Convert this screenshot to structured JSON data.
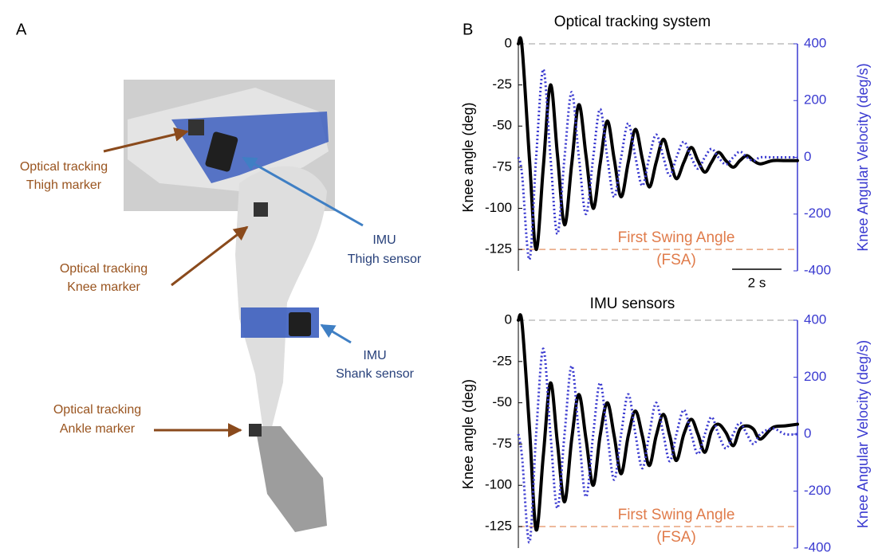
{
  "panel_labels": [
    "A",
    "B"
  ],
  "panel_a": {
    "labels": [
      {
        "lines": [
          "Optical tracking",
          "Thigh marker"
        ]
      },
      {
        "lines": [
          "Optical tracking",
          "Knee marker"
        ]
      },
      {
        "lines": [
          "IMU",
          "Thigh sensor"
        ]
      },
      {
        "lines": [
          "IMU",
          "Shank sensor"
        ]
      },
      {
        "lines": [
          "Optical tracking",
          "Ankle marker"
        ]
      }
    ]
  },
  "chart_data": [
    {
      "type": "line",
      "title": "Optical tracking system",
      "y_label": "Knee angle (deg)",
      "y2_label": "Knee Angular Velocity (deg/s)",
      "annotation": [
        "First Swing Angle",
        "(FSA)"
      ],
      "scale_bar": {
        "length": 2,
        "label": "2 s"
      },
      "xlim": [
        0,
        11.3
      ],
      "ylim": [
        -138,
        0
      ],
      "yticks": [
        0,
        -25,
        -50,
        -75,
        -100,
        -125
      ],
      "y2lim": [
        -400,
        400
      ],
      "y2ticks": [
        400,
        200,
        0,
        -200,
        -400
      ],
      "hlines": [
        {
          "value": 0,
          "color": "#bdbdbd"
        },
        {
          "value": -125,
          "color": "#e8a27c"
        }
      ],
      "x": [
        0,
        0.15,
        0.45,
        0.72,
        1.01,
        1.3,
        1.58,
        1.87,
        2.16,
        2.45,
        2.74,
        3.03,
        3.31,
        3.6,
        3.88,
        4.16,
        4.45,
        4.74,
        5.02,
        5.3,
        5.58,
        5.87,
        6.13,
        6.4,
        6.7,
        7.0,
        7.27,
        7.55,
        7.82,
        8.1,
        8.4,
        8.7,
        8.97,
        9.25,
        9.52,
        9.8,
        10.3,
        10.8,
        11.3
      ],
      "series": [
        {
          "color": "#000000",
          "style": "solid",
          "values": [
            0,
            -2,
            -70,
            -125,
            -75,
            -25,
            -67,
            -110,
            -73,
            -37,
            -68,
            -100,
            -73,
            -47,
            -70,
            -93,
            -72,
            -52,
            -70,
            -87,
            -72,
            -58,
            -70,
            -82,
            -72,
            -63,
            -71,
            -78,
            -72,
            -66,
            -71,
            -75,
            -71,
            -68,
            -71,
            -73,
            -71,
            -71,
            -71
          ]
        },
        {
          "color": "#3a3ad0",
          "style": "dotted",
          "axis": "y2",
          "values": [
            0,
            -60,
            -360,
            0,
            310,
            0,
            -270,
            0,
            230,
            0,
            -200,
            0,
            170,
            0,
            -140,
            0,
            120,
            0,
            -100,
            0,
            80,
            0,
            -65,
            0,
            55,
            0,
            -40,
            0,
            30,
            0,
            -25,
            0,
            20,
            0,
            -12,
            0,
            0,
            0,
            0
          ]
        }
      ]
    },
    {
      "type": "line",
      "title": "IMU sensors",
      "y_label": "Knee angle (deg)",
      "y2_label": "Knee Angular Velocity (deg/s)",
      "annotation": [
        "First Swing Angle",
        "(FSA)"
      ],
      "xlim": [
        0,
        11.3
      ],
      "ylim": [
        -138,
        0
      ],
      "yticks": [
        0,
        -25,
        -50,
        -75,
        -100,
        -125
      ],
      "y2lim": [
        -400,
        400
      ],
      "y2ticks": [
        400,
        200,
        0,
        -200,
        -400
      ],
      "hlines": [
        {
          "value": 0,
          "color": "#bdbdbd"
        },
        {
          "value": -125,
          "color": "#e8a27c"
        }
      ],
      "x": [
        0,
        0.15,
        0.45,
        0.72,
        1.01,
        1.3,
        1.58,
        1.87,
        2.16,
        2.45,
        2.74,
        3.03,
        3.31,
        3.6,
        3.88,
        4.16,
        4.45,
        4.74,
        5.02,
        5.3,
        5.58,
        5.87,
        6.13,
        6.4,
        6.7,
        7.0,
        7.27,
        7.55,
        7.82,
        8.1,
        8.4,
        8.7,
        8.97,
        9.25,
        9.52,
        9.8,
        10.3,
        10.8,
        11.3
      ],
      "series": [
        {
          "color": "#000000",
          "style": "solid",
          "values": [
            0,
            -2,
            -65,
            -127,
            -82,
            -38,
            -74,
            -110,
            -72,
            -45,
            -72,
            -100,
            -70,
            -50,
            -70,
            -93,
            -70,
            -55,
            -70,
            -88,
            -70,
            -57,
            -70,
            -85,
            -69,
            -60,
            -69,
            -80,
            -67,
            -63,
            -68,
            -76,
            -66,
            -64,
            -66,
            -72,
            -65,
            -64,
            -63
          ]
        },
        {
          "color": "#3a3ad0",
          "style": "dotted",
          "axis": "y2",
          "values": [
            0,
            -80,
            -380,
            0,
            300,
            0,
            -260,
            0,
            240,
            0,
            -220,
            0,
            180,
            0,
            -160,
            0,
            140,
            0,
            -120,
            0,
            110,
            0,
            -95,
            0,
            85,
            0,
            -70,
            0,
            60,
            0,
            -50,
            0,
            40,
            0,
            -35,
            0,
            20,
            0,
            0
          ]
        }
      ]
    }
  ]
}
